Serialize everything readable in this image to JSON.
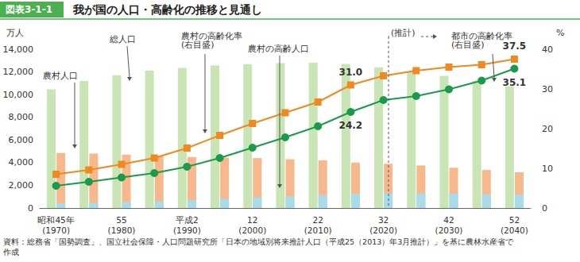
{
  "chart_data": {
    "type": "bar",
    "title": "我が国の人口・高齢化の推移と見通し",
    "figure_label": "図表3-1-1",
    "ylabel": "万人",
    "y2label": "%",
    "source": "資料：総務省「国勢調査」、国立社会保障・人口問題研究所「日本の地域別将来推計人口（平成25（2013）年3月推計）」を基に農林水産省で\n作成",
    "annotations": [
      "(推計)",
      "(右目盛)"
    ],
    "categories": [
      "昭和45年\n(1970)",
      null,
      "55\n(1980)",
      null,
      "平成2\n(1990)",
      null,
      "12\n(2000)",
      null,
      "22\n(2010)",
      null,
      "32\n(2020)",
      null,
      "42\n(2030)",
      null,
      "52\n(2040)"
    ],
    "ylim": [
      0,
      14000
    ],
    "yticks": [
      0,
      {
        "value": 2000,
        "label": "2,000"
      },
      {
        "value": 4000,
        "label": "4,000"
      },
      {
        "value": 6000,
        "label": "6,000"
      },
      {
        "value": 8000,
        "label": "8,000"
      },
      {
        "value": 10000,
        "label": "10,000"
      },
      {
        "value": 12000,
        "label": "12,000"
      },
      {
        "value": 14000,
        "label": "14,000"
      }
    ],
    "y2lim": [
      0,
      40
    ],
    "y2ticks": [
      0,
      10,
      20,
      30,
      40
    ],
    "grid": false,
    "series": [
      {
        "name": "総人口",
        "type": "bar",
        "color": "#c9e5b6",
        "values": [
          10467,
          11194,
          11706,
          12105,
          12361,
          12557,
          12693,
          12777,
          12806,
          12709,
          12410,
          12066,
          11662,
          11212,
          10728
        ]
      },
      {
        "name": "農村人口",
        "type": "bar",
        "color": "#f6b88c",
        "values": [
          4850,
          4800,
          4700,
          4600,
          4500,
          4450,
          4400,
          4300,
          4200,
          4000,
          3900,
          3750,
          3550,
          3350,
          3150
        ]
      },
      {
        "name": "農村の高齢人口",
        "type": "bar",
        "color": "#a9dcea",
        "values": [
          410,
          460,
          520,
          580,
          680,
          810,
          940,
          1030,
          1120,
          1240,
          1300,
          1300,
          1260,
          1210,
          1180
        ]
      },
      {
        "name": "農村の高齢化率",
        "type": "line",
        "axis": "y2",
        "color": "#f0891e",
        "marker": "square",
        "values": [
          8.5,
          9.6,
          11.0,
          12.6,
          15.1,
          18.3,
          21.3,
          24.0,
          26.7,
          31.0,
          33.3,
          34.6,
          35.5,
          36.1,
          37.5
        ],
        "value_labels": [
          null,
          null,
          null,
          null,
          null,
          null,
          null,
          null,
          null,
          "31.0",
          null,
          null,
          null,
          null,
          "37.5"
        ]
      },
      {
        "name": "都市の高齢化率",
        "type": "line",
        "axis": "y2",
        "color": "#1a9a4a",
        "marker": "circle",
        "values": [
          5.6,
          6.6,
          7.7,
          8.8,
          10.4,
          12.6,
          15.2,
          17.8,
          20.6,
          24.2,
          27.2,
          28.2,
          29.9,
          32.1,
          35.1
        ],
        "value_labels": [
          null,
          null,
          null,
          null,
          null,
          null,
          null,
          null,
          null,
          "24.2",
          null,
          null,
          null,
          null,
          "35.1"
        ]
      }
    ]
  }
}
